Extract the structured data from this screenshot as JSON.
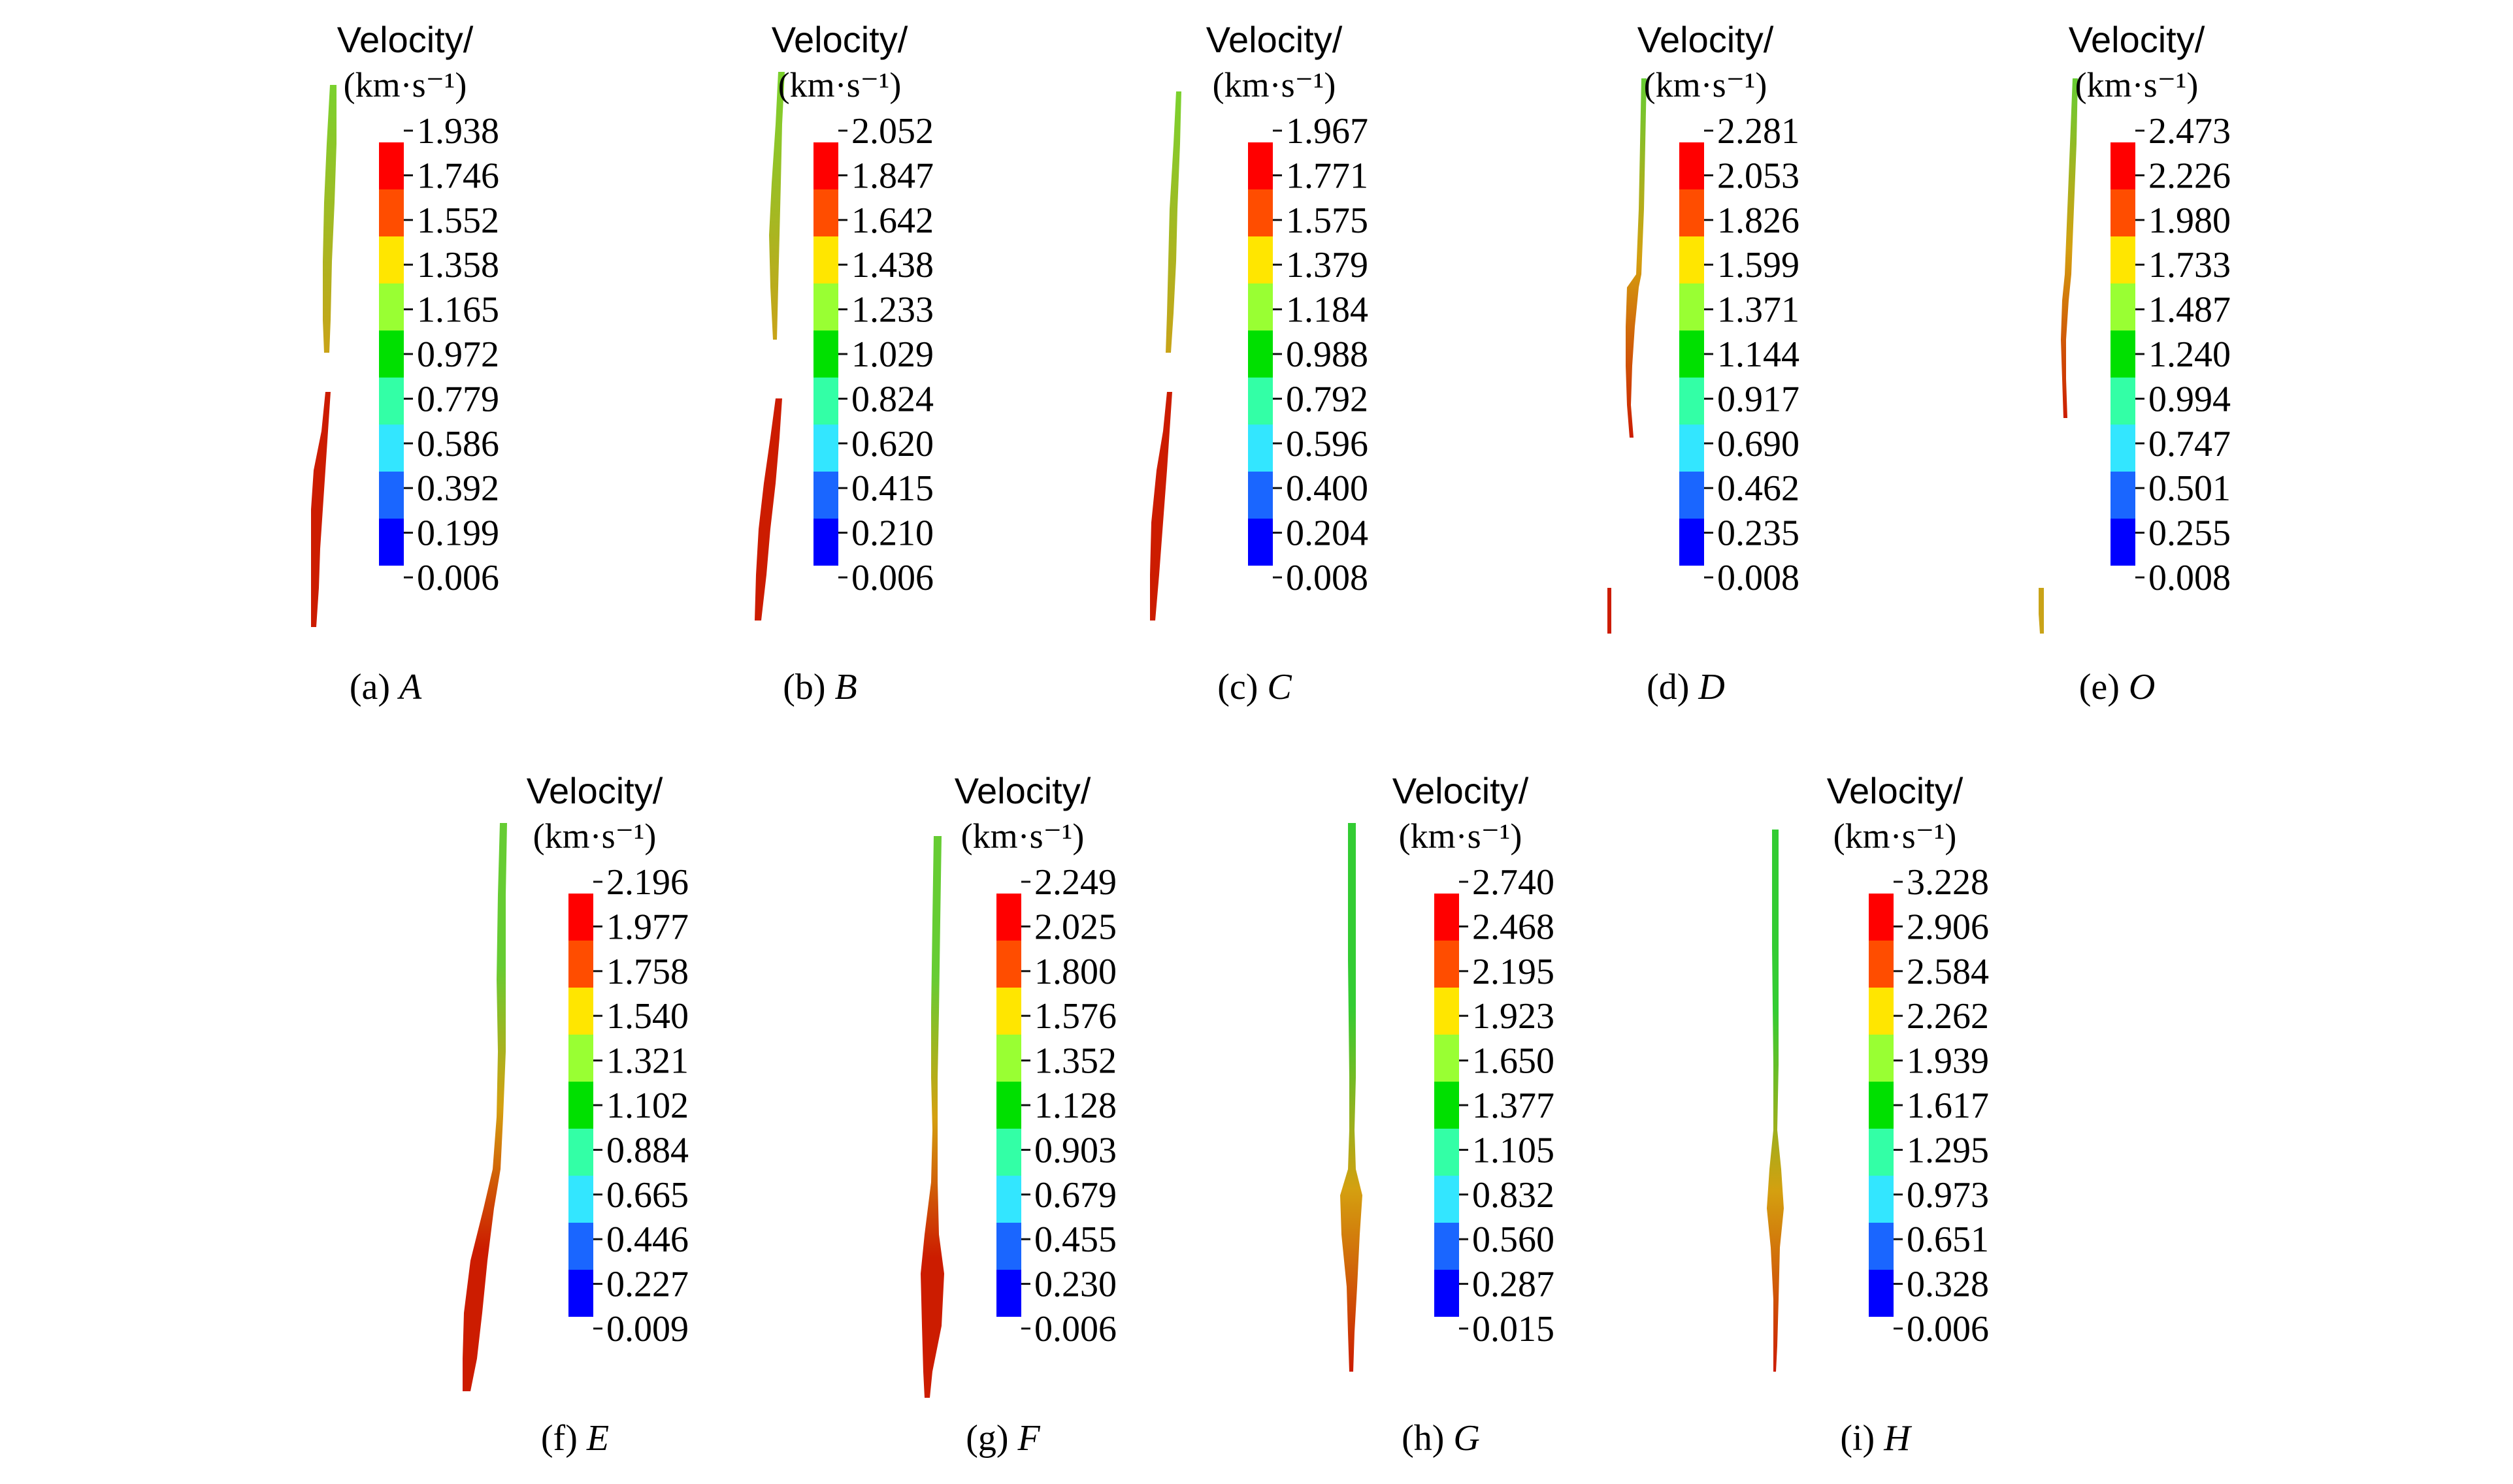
{
  "figure": {
    "colorbar_title": "Velocity/",
    "colorbar_unit": "(km·s⁻¹)",
    "colors": [
      "#ff0000",
      "#ff4d00",
      "#ffe600",
      "#99ff33",
      "#00e000",
      "#33ffa6",
      "#33e6ff",
      "#1a66ff",
      "#0000ff"
    ],
    "panels": [
      {
        "caption": "(a)",
        "label": "A",
        "ticks": [
          "1.938",
          "1.746",
          "1.552",
          "1.358",
          "1.165",
          "0.972",
          "0.779",
          "0.586",
          "0.392",
          "0.199",
          "0.006"
        ]
      },
      {
        "caption": "(b)",
        "label": "B",
        "ticks": [
          "2.052",
          "1.847",
          "1.642",
          "1.438",
          "1.233",
          "1.029",
          "0.824",
          "0.620",
          "0.415",
          "0.210",
          "0.006"
        ]
      },
      {
        "caption": "(c)",
        "label": "C",
        "ticks": [
          "1.967",
          "1.771",
          "1.575",
          "1.379",
          "1.184",
          "0.988",
          "0.792",
          "0.596",
          "0.400",
          "0.204",
          "0.008"
        ]
      },
      {
        "caption": "(d)",
        "label": "D",
        "ticks": [
          "2.281",
          "2.053",
          "1.826",
          "1.599",
          "1.371",
          "1.144",
          "0.917",
          "0.690",
          "0.462",
          "0.235",
          "0.008"
        ]
      },
      {
        "caption": "(e)",
        "label": "O",
        "ticks": [
          "2.473",
          "2.226",
          "1.980",
          "1.733",
          "1.487",
          "1.240",
          "0.994",
          "0.747",
          "0.501",
          "0.255",
          "0.008"
        ]
      },
      {
        "caption": "(f)",
        "label": "E",
        "ticks": [
          "2.196",
          "1.977",
          "1.758",
          "1.540",
          "1.321",
          "1.102",
          "0.884",
          "0.665",
          "0.446",
          "0.227",
          "0.009"
        ]
      },
      {
        "caption": "(g)",
        "label": "F",
        "ticks": [
          "2.249",
          "2.025",
          "1.800",
          "1.576",
          "1.352",
          "1.128",
          "0.903",
          "0.679",
          "0.455",
          "0.230",
          "0.006"
        ]
      },
      {
        "caption": "(h)",
        "label": "G",
        "ticks": [
          "2.740",
          "2.468",
          "2.195",
          "1.923",
          "1.650",
          "1.377",
          "1.105",
          "0.832",
          "0.560",
          "0.287",
          "0.015"
        ]
      },
      {
        "caption": "(i)",
        "label": "H",
        "ticks": [
          "3.228",
          "2.906",
          "2.584",
          "2.262",
          "1.939",
          "1.617",
          "1.295",
          "0.973",
          "0.651",
          "0.328",
          "0.006"
        ]
      }
    ]
  }
}
